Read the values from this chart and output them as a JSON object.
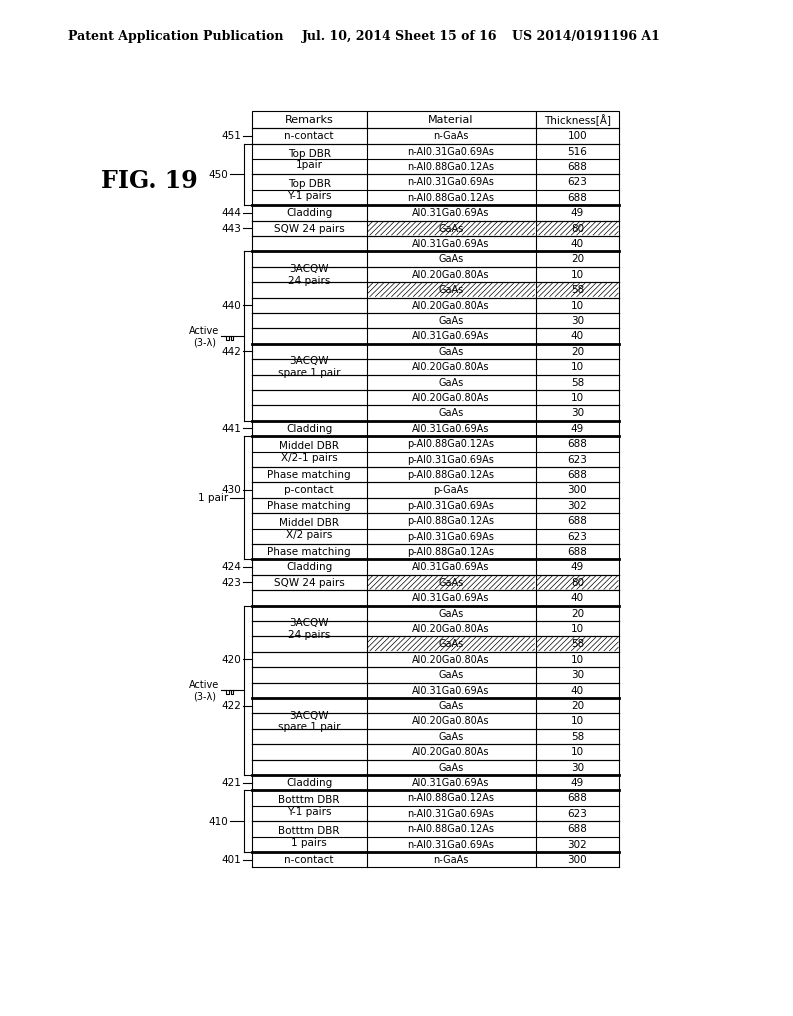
{
  "header_text1": "Patent Application Publication",
  "header_text2": "Jul. 10, 2014",
  "header_text3": "Sheet 15 of 16",
  "header_text4": "US 2014/0191196 A1",
  "fig_label": "FIG. 19",
  "bg_color": "#ffffff",
  "col_headers": [
    "Remarks",
    "Material",
    "Thickness[Å]"
  ],
  "rows": [
    {
      "remarks": "n-contact",
      "material": "n-GaAs",
      "thickness": "100",
      "hatched": false,
      "thick_line_above": false,
      "side_label": "451",
      "side_type": "simple"
    },
    {
      "remarks": "Top DBR\n1pair",
      "material": "n-Al0.31Ga0.69As",
      "material2": "n-Al0.88Ga0.12As",
      "thickness": "516",
      "thickness2": "688",
      "hatched": false,
      "thick_line_above": false,
      "side_label": null,
      "side_type": null
    },
    {
      "remarks": "Top DBR\nY-1 pairs",
      "material": "n-Al0.31Ga0.69As",
      "material2": "n-Al0.88Ga0.12As",
      "thickness": "623",
      "thickness2": "688",
      "hatched": false,
      "thick_line_above": false,
      "side_label": null,
      "side_type": null
    },
    {
      "remarks": "Cladding",
      "material": "Al0.31Ga0.69As",
      "thickness": "49",
      "hatched": false,
      "thick_line_above": true,
      "side_label": "444",
      "side_type": "simple"
    },
    {
      "remarks": "SQW 24 pairs",
      "material": "GaAs",
      "thickness": "80",
      "hatched": true,
      "thick_line_above": false,
      "side_label": "443",
      "side_type": "simple"
    },
    {
      "remarks": "",
      "material": "Al0.31Ga0.69As",
      "thickness": "40",
      "hatched": false,
      "thick_line_above": false,
      "side_label": null,
      "side_type": null
    },
    {
      "remarks": "",
      "material": "GaAs",
      "thickness": "20",
      "hatched": false,
      "thick_line_above": true,
      "side_label": null,
      "side_type": null
    },
    {
      "remarks": "3ACQW\n24 pairs",
      "material": "Al0.20Ga0.80As",
      "thickness": "10",
      "hatched": false,
      "thick_line_above": false,
      "side_label": null,
      "side_type": null
    },
    {
      "remarks": "",
      "material": "GaAs",
      "thickness": "58",
      "hatched": true,
      "thick_line_above": false,
      "side_label": null,
      "side_type": null
    },
    {
      "remarks": "",
      "material": "Al0.20Ga0.80As",
      "thickness": "10",
      "hatched": false,
      "thick_line_above": false,
      "side_label": "440",
      "side_type": "simple"
    },
    {
      "remarks": "",
      "material": "GaAs",
      "thickness": "30",
      "hatched": false,
      "thick_line_above": false,
      "side_label": null,
      "side_type": null
    },
    {
      "remarks": "",
      "material": "Al0.31Ga0.69As",
      "thickness": "40",
      "hatched": false,
      "thick_line_above": false,
      "side_label": null,
      "side_type": null
    },
    {
      "remarks": "",
      "material": "GaAs",
      "thickness": "20",
      "hatched": false,
      "thick_line_above": true,
      "side_label": "442",
      "side_type": "simple"
    },
    {
      "remarks": "3ACQW\nspare 1 pair",
      "material": "Al0.20Ga0.80As",
      "thickness": "10",
      "hatched": false,
      "thick_line_above": false,
      "side_label": null,
      "side_type": null
    },
    {
      "remarks": "",
      "material": "GaAs",
      "thickness": "58",
      "hatched": false,
      "thick_line_above": false,
      "side_label": null,
      "side_type": null
    },
    {
      "remarks": "",
      "material": "Al0.20Ga0.80As",
      "thickness": "10",
      "hatched": false,
      "thick_line_above": false,
      "side_label": null,
      "side_type": null
    },
    {
      "remarks": "",
      "material": "GaAs",
      "thickness": "30",
      "hatched": false,
      "thick_line_above": false,
      "side_label": null,
      "side_type": null
    },
    {
      "remarks": "Cladding",
      "material": "Al0.31Ga0.69As",
      "thickness": "49",
      "hatched": false,
      "thick_line_above": true,
      "side_label": "441",
      "side_type": "simple"
    },
    {
      "remarks": "Middel DBR\nX/2-1 pairs",
      "material": "p-Al0.88Ga0.12As",
      "material2": "p-Al0.31Ga0.69As",
      "thickness": "688",
      "thickness2": "623",
      "hatched": false,
      "thick_line_above": true,
      "side_label": null,
      "side_type": null
    },
    {
      "remarks": "Phase matching",
      "material": "p-Al0.88Ga0.12As",
      "thickness": "688",
      "hatched": false,
      "thick_line_above": false,
      "side_label": null,
      "side_type": null
    },
    {
      "remarks": "p-contact",
      "material": "p-GaAs",
      "thickness": "300",
      "hatched": false,
      "thick_line_above": false,
      "side_label": "430",
      "side_type": "simple"
    },
    {
      "remarks": "Phase matching",
      "material": "p-Al0.31Ga0.69As",
      "thickness": "302",
      "hatched": false,
      "thick_line_above": false,
      "side_label": null,
      "side_type": null
    },
    {
      "remarks": "Middel DBR\nX/2 pairs",
      "material": "p-Al0.88Ga0.12As",
      "material2": "p-Al0.31Ga0.69As",
      "thickness": "688",
      "thickness2": "623",
      "hatched": false,
      "thick_line_above": false,
      "side_label": null,
      "side_type": null
    },
    {
      "remarks": "Phase matching",
      "material": "p-Al0.88Ga0.12As",
      "thickness": "688",
      "hatched": false,
      "thick_line_above": false,
      "side_label": null,
      "side_type": null
    },
    {
      "remarks": "Cladding",
      "material": "Al0.31Ga0.69As",
      "thickness": "49",
      "hatched": false,
      "thick_line_above": true,
      "side_label": "424",
      "side_type": "simple"
    },
    {
      "remarks": "SQW 24 pairs",
      "material": "GaAs",
      "thickness": "80",
      "hatched": true,
      "thick_line_above": false,
      "side_label": "423",
      "side_type": "simple"
    },
    {
      "remarks": "",
      "material": "Al0.31Ga0.69As",
      "thickness": "40",
      "hatched": false,
      "thick_line_above": false,
      "side_label": null,
      "side_type": null
    },
    {
      "remarks": "",
      "material": "GaAs",
      "thickness": "20",
      "hatched": false,
      "thick_line_above": true,
      "side_label": null,
      "side_type": null
    },
    {
      "remarks": "3ACQW\n24 pairs",
      "material": "Al0.20Ga0.80As",
      "thickness": "10",
      "hatched": false,
      "thick_line_above": false,
      "side_label": null,
      "side_type": null
    },
    {
      "remarks": "",
      "material": "GaAs",
      "thickness": "58",
      "hatched": true,
      "thick_line_above": false,
      "side_label": null,
      "side_type": null
    },
    {
      "remarks": "",
      "material": "Al0.20Ga0.80As",
      "thickness": "10",
      "hatched": false,
      "thick_line_above": false,
      "side_label": "420",
      "side_type": "simple"
    },
    {
      "remarks": "",
      "material": "GaAs",
      "thickness": "30",
      "hatched": false,
      "thick_line_above": false,
      "side_label": null,
      "side_type": null
    },
    {
      "remarks": "",
      "material": "Al0.31Ga0.69As",
      "thickness": "40",
      "hatched": false,
      "thick_line_above": false,
      "side_label": null,
      "side_type": null
    },
    {
      "remarks": "",
      "material": "GaAs",
      "thickness": "20",
      "hatched": false,
      "thick_line_above": true,
      "side_label": "422",
      "side_type": "simple"
    },
    {
      "remarks": "3ACQW\nspare 1 pair",
      "material": "Al0.20Ga0.80As",
      "thickness": "10",
      "hatched": false,
      "thick_line_above": false,
      "side_label": null,
      "side_type": null
    },
    {
      "remarks": "",
      "material": "GaAs",
      "thickness": "58",
      "hatched": false,
      "thick_line_above": false,
      "side_label": null,
      "side_type": null
    },
    {
      "remarks": "",
      "material": "Al0.20Ga0.80As",
      "thickness": "10",
      "hatched": false,
      "thick_line_above": false,
      "side_label": null,
      "side_type": null
    },
    {
      "remarks": "",
      "material": "GaAs",
      "thickness": "30",
      "hatched": false,
      "thick_line_above": false,
      "side_label": null,
      "side_type": null
    },
    {
      "remarks": "Cladding",
      "material": "Al0.31Ga0.69As",
      "thickness": "49",
      "hatched": false,
      "thick_line_above": true,
      "side_label": "421",
      "side_type": "simple"
    },
    {
      "remarks": "Botttm DBR\nY-1 pairs",
      "material": "n-Al0.88Ga0.12As",
      "material2": "n-Al0.31Ga0.69As",
      "thickness": "688",
      "thickness2": "623",
      "hatched": false,
      "thick_line_above": true,
      "side_label": null,
      "side_type": null
    },
    {
      "remarks": "Botttm DBR\n1 pairs",
      "material": "n-Al0.88Ga0.12As",
      "material2": "n-Al0.31Ga0.69As",
      "thickness": "688",
      "thickness2": "302",
      "hatched": false,
      "thick_line_above": false,
      "side_label": null,
      "side_type": null
    },
    {
      "remarks": "n-contact",
      "material": "n-GaAs",
      "thickness": "300",
      "hatched": false,
      "thick_line_above": true,
      "side_label": "401",
      "side_type": "simple"
    }
  ]
}
